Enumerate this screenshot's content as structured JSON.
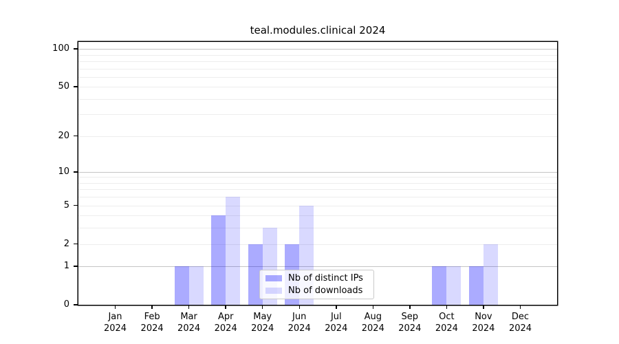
{
  "chart_data": {
    "type": "bar",
    "title": "teal.modules.clinical 2024",
    "year_label": "2024",
    "categories": [
      "Jan",
      "Feb",
      "Mar",
      "Apr",
      "May",
      "Jun",
      "Jul",
      "Aug",
      "Sep",
      "Oct",
      "Nov",
      "Dec"
    ],
    "series": [
      {
        "name": "Nb of distinct IPs",
        "color": "rgba(0,0,255,0.33)",
        "values": [
          0,
          0,
          1,
          4,
          2,
          2,
          0,
          0,
          0,
          1,
          1,
          0
        ]
      },
      {
        "name": "Nb of downloads",
        "color": "rgba(0,0,255,0.15)",
        "values": [
          0,
          0,
          1,
          6,
          3,
          5,
          0,
          0,
          0,
          1,
          2,
          0
        ]
      }
    ],
    "yscale": "log1p",
    "ylim": [
      0,
      113
    ],
    "ytick_labels": [
      "100",
      "50",
      "20",
      "10",
      "5",
      "2",
      "1",
      "0"
    ],
    "ytick_values": [
      100,
      50,
      20,
      10,
      5,
      2,
      1,
      0
    ],
    "grid_major": [
      1,
      10,
      100
    ],
    "grid_minor": [
      2,
      3,
      4,
      5,
      6,
      7,
      8,
      9,
      20,
      30,
      40,
      50,
      60,
      70,
      80,
      90
    ],
    "grid": true,
    "legend_position": "inside lower center",
    "colors": {
      "grid_major": "#c4c4c4",
      "grid_minor": "#ededed",
      "axis": "#000000",
      "background": "#ffffff"
    }
  }
}
